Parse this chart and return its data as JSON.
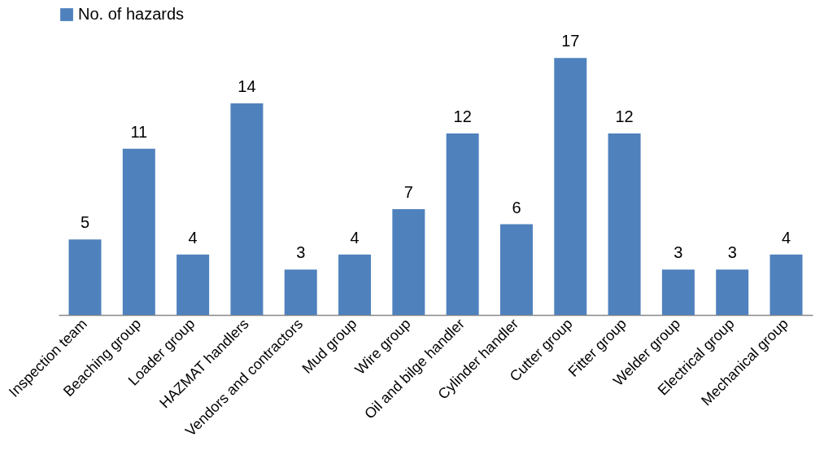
{
  "chart_data": {
    "type": "bar",
    "categories": [
      "Inspection team",
      "Beaching group",
      "Loader group",
      "HAZMAT handlers",
      "Vendors and contractors",
      "Mud group",
      "Wire group",
      "Oil and bilge handler",
      "Cylinder handler",
      "Cutter group",
      "Fitter group",
      "Welder group",
      "Electrical group",
      "Mechanical group"
    ],
    "series": [
      {
        "name": "No. of hazards",
        "color": "#4f81bd",
        "values": [
          5,
          11,
          4,
          14,
          3,
          4,
          7,
          12,
          6,
          17,
          12,
          3,
          3,
          4
        ]
      }
    ],
    "data_labels": true,
    "legend": "top",
    "grid": false
  }
}
